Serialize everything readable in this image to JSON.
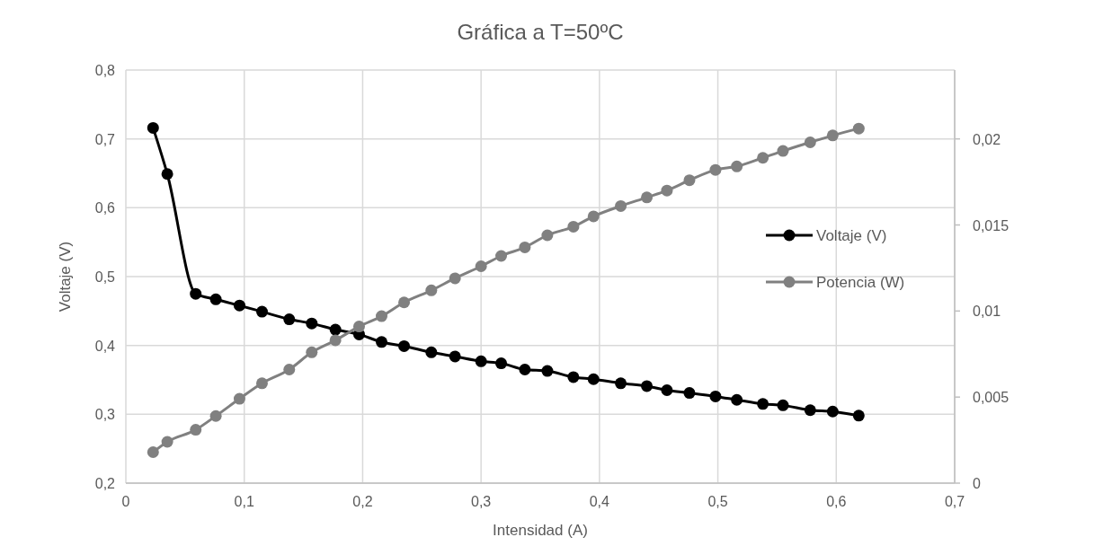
{
  "chart_data": {
    "type": "line",
    "title": "Gráfica a T=50ºC",
    "xlabel": "Intensidad (A)",
    "ylabel": "Voltaje (V)",
    "x": [
      0.023,
      0.035,
      0.059,
      0.076,
      0.096,
      0.115,
      0.138,
      0.157,
      0.177,
      0.197,
      0.216,
      0.235,
      0.258,
      0.278,
      0.3,
      0.317,
      0.337,
      0.356,
      0.378,
      0.395,
      0.418,
      0.44,
      0.457,
      0.476,
      0.498,
      0.516,
      0.538,
      0.555,
      0.578,
      0.597,
      0.619
    ],
    "series": [
      {
        "name": "Voltaje (V)",
        "color": "#000000",
        "values": [
          0.716,
          0.649,
          0.475,
          0.467,
          0.458,
          0.449,
          0.438,
          0.432,
          0.423,
          0.416,
          0.405,
          0.399,
          0.39,
          0.384,
          0.377,
          0.374,
          0.365,
          0.363,
          0.354,
          0.351,
          0.345,
          0.341,
          0.335,
          0.331,
          0.326,
          0.321,
          0.315,
          0.313,
          0.306,
          0.304,
          0.298
        ]
      },
      {
        "name": "Potencia (W)",
        "color": "#808080",
        "axis": "y2",
        "values": [
          0.0018,
          0.0024,
          0.0031,
          0.0039,
          0.0049,
          0.0058,
          0.0066,
          0.0076,
          0.0083,
          0.0091,
          0.0097,
          0.0105,
          0.0112,
          0.0119,
          0.0126,
          0.0132,
          0.0137,
          0.0144,
          0.0149,
          0.0155,
          0.0161,
          0.0166,
          0.017,
          0.0176,
          0.0182,
          0.0184,
          0.0189,
          0.0193,
          0.0198,
          0.0202,
          0.0206
        ]
      }
    ],
    "xlim": [
      0,
      0.7
    ],
    "xticks": [
      0,
      {
        "value": 0.1,
        "label": "0,1"
      },
      {
        "value": 0.2,
        "label": "0,2"
      },
      {
        "value": 0.3,
        "label": "0,3"
      },
      {
        "value": 0.4,
        "label": "0,4"
      },
      {
        "value": 0.5,
        "label": "0,5"
      },
      {
        "value": 0.6,
        "label": "0,6"
      },
      {
        "value": 0.7,
        "label": "0,7"
      }
    ],
    "ylim": [
      0.2,
      0.8
    ],
    "yticks": [
      {
        "value": 0.2,
        "label": "0,2"
      },
      {
        "value": 0.3,
        "label": "0,3"
      },
      {
        "value": 0.4,
        "label": "0,4"
      },
      {
        "value": 0.5,
        "label": "0,5"
      },
      {
        "value": 0.6,
        "label": "0,6"
      },
      {
        "value": 0.7,
        "label": "0,7"
      },
      {
        "value": 0.8,
        "label": "0,8"
      }
    ],
    "y2lim": [
      0,
      0.024
    ],
    "y2ticks": [
      0,
      {
        "value": 0.005,
        "label": "0,005"
      },
      {
        "value": 0.01,
        "label": "0,01"
      },
      {
        "value": 0.015,
        "label": "0,015"
      },
      {
        "value": 0.02,
        "label": "0,02"
      }
    ],
    "grid": true,
    "legend": "right",
    "marker": "circle",
    "line_style": "solid"
  }
}
